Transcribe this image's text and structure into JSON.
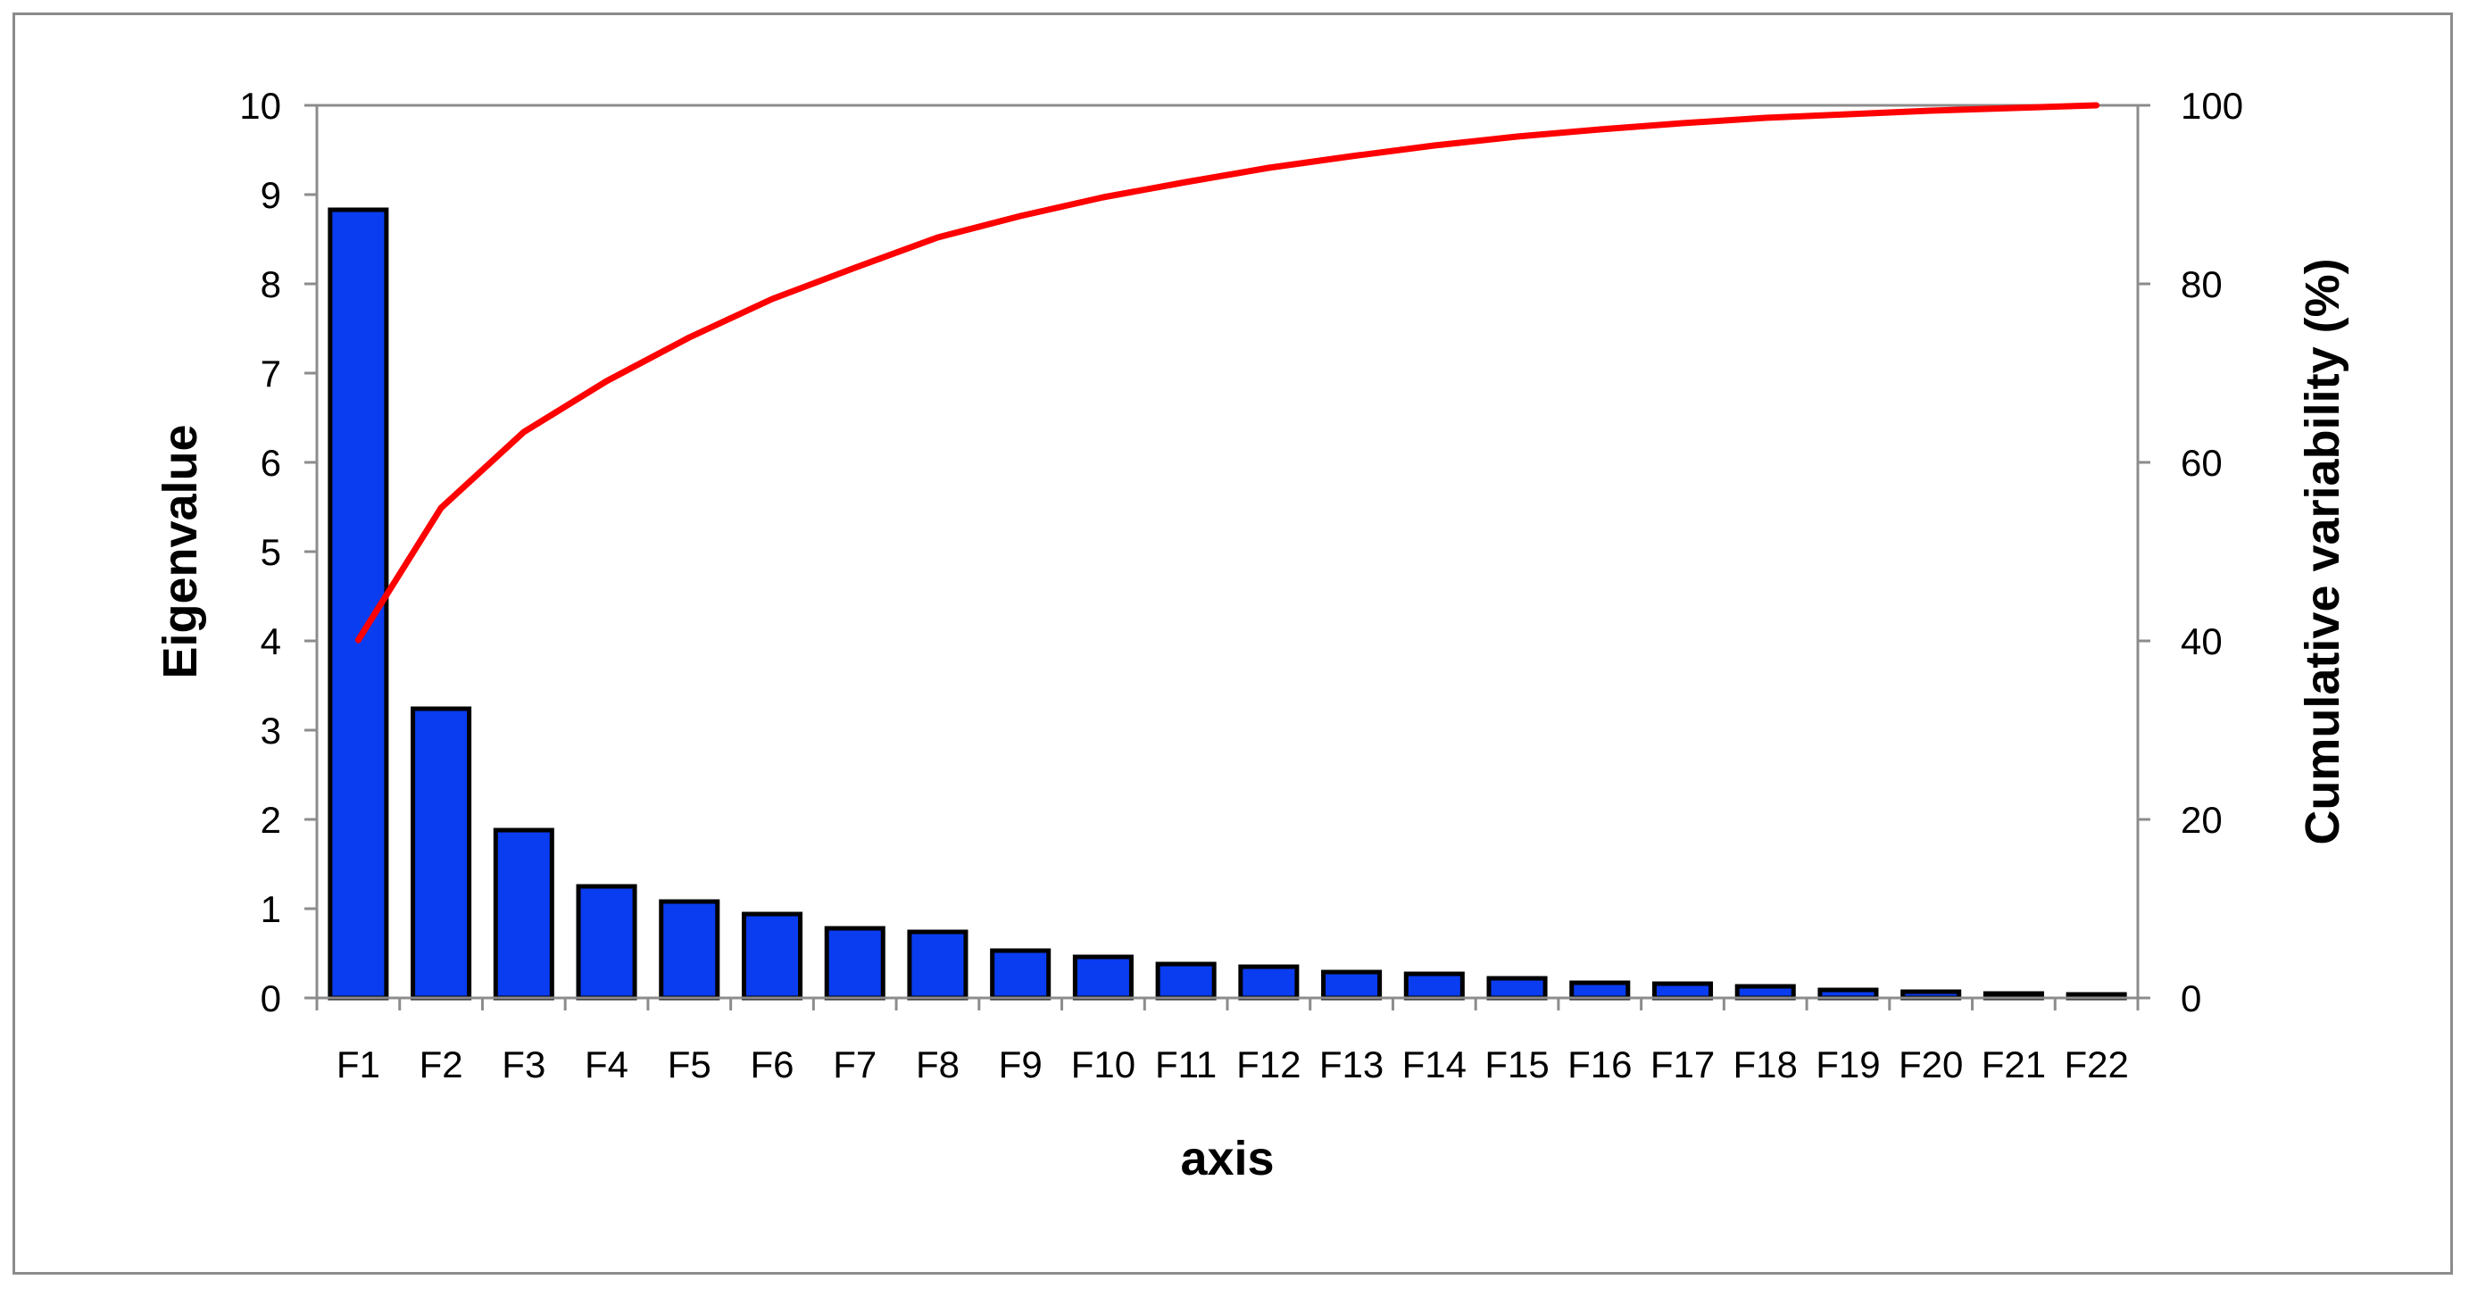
{
  "chart_data": {
    "type": "bar",
    "title": "",
    "xlabel": "axis",
    "ylabel": "Eigenvalue",
    "y2label": "Cumulative variability (%)",
    "categories": [
      "F1",
      "F2",
      "F3",
      "F4",
      "F5",
      "F6",
      "F7",
      "F8",
      "F9",
      "F10",
      "F11",
      "F12",
      "F13",
      "F14",
      "F15",
      "F16",
      "F17",
      "F18",
      "F19",
      "F20",
      "F21",
      "F22"
    ],
    "ylim": [
      0,
      10
    ],
    "yticks": [
      "0",
      "1",
      "2",
      "3",
      "4",
      "5",
      "6",
      "7",
      "8",
      "9",
      "10"
    ],
    "y2lim": [
      0,
      100
    ],
    "y2ticks": [
      "0",
      "20",
      "40",
      "60",
      "80",
      "100"
    ],
    "grid": false,
    "legend": "none",
    "series": [
      {
        "type": "bar",
        "axis": "left",
        "color": "#0a3cf0",
        "values": [
          8.83,
          3.24,
          1.88,
          1.25,
          1.08,
          0.94,
          0.78,
          0.74,
          0.53,
          0.46,
          0.38,
          0.35,
          0.29,
          0.27,
          0.22,
          0.17,
          0.16,
          0.13,
          0.09,
          0.07,
          0.05,
          0.04
        ]
      },
      {
        "type": "line",
        "axis": "right",
        "color": "#ff0000",
        "values": [
          40.1,
          54.9,
          63.4,
          69.1,
          74.0,
          78.3,
          81.8,
          85.2,
          87.6,
          89.7,
          91.4,
          93.0,
          94.3,
          95.5,
          96.5,
          97.3,
          98.0,
          98.6,
          99.0,
          99.4,
          99.7,
          100.0
        ]
      }
    ]
  }
}
